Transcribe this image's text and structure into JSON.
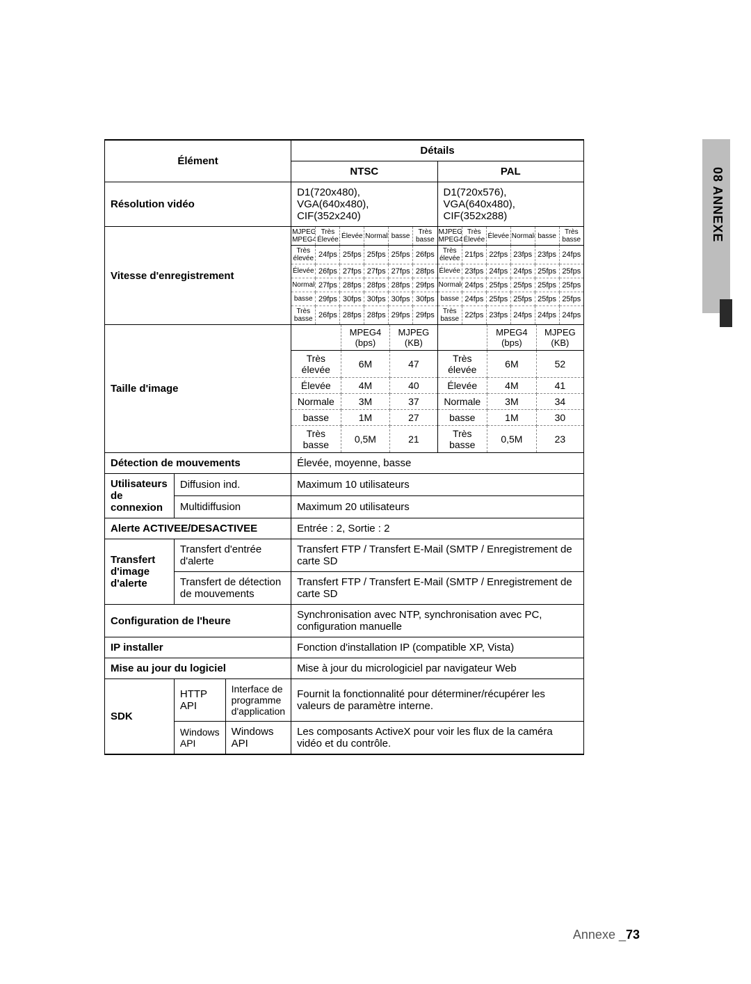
{
  "side_label": "08  ANNEXE",
  "headers": {
    "element": "Élément",
    "details": "Détails",
    "ntsc": "NTSC",
    "pal": "PAL"
  },
  "rows": {
    "resolution": {
      "label": "Résolution vidéo",
      "ntsc": "D1(720x480), VGA(640x480), CIF(352x240)",
      "pal": "D1(720x576), VGA(640x480), CIF(352x288)"
    },
    "rec_speed": {
      "label": "Vitesse d'enregistrement",
      "col_headers": [
        "Très Élevée",
        "Élevée",
        "Normale",
        "basse",
        "Très basse"
      ],
      "corner_ntsc": "MJPEG MPEG4",
      "corner_pal": "MJPEG MPEG4",
      "row_headers": [
        "Très élevée",
        "Élevée",
        "Normale",
        "basse",
        "Très basse"
      ],
      "ntsc": [
        [
          "24fps",
          "25fps",
          "25fps",
          "25fps",
          "26fps"
        ],
        [
          "26fps",
          "27fps",
          "27fps",
          "27fps",
          "28fps"
        ],
        [
          "27fps",
          "28fps",
          "28fps",
          "28fps",
          "29fps"
        ],
        [
          "29fps",
          "30fps",
          "30fps",
          "30fps",
          "30fps"
        ],
        [
          "26fps",
          "28fps",
          "28fps",
          "29fps",
          "29fps"
        ]
      ],
      "pal": [
        [
          "21fps",
          "22fps",
          "23fps",
          "23fps",
          "24fps"
        ],
        [
          "23fps",
          "24fps",
          "24fps",
          "25fps",
          "25fps"
        ],
        [
          "24fps",
          "25fps",
          "25fps",
          "25fps",
          "25fps"
        ],
        [
          "24fps",
          "25fps",
          "25fps",
          "25fps",
          "25fps"
        ],
        [
          "22fps",
          "23fps",
          "24fps",
          "24fps",
          "24fps"
        ]
      ]
    },
    "img_size": {
      "label": "Taille d'image",
      "col_headers": [
        "",
        "MPEG4 (bps)",
        "MJPEG (KB)"
      ],
      "row_headers": [
        "Très élevée",
        "Élevée",
        "Normale",
        "basse",
        "Très basse"
      ],
      "ntsc": [
        [
          "6M",
          "47"
        ],
        [
          "4M",
          "40"
        ],
        [
          "3M",
          "37"
        ],
        [
          "1M",
          "27"
        ],
        [
          "0,5M",
          "21"
        ]
      ],
      "pal": [
        [
          "6M",
          "52"
        ],
        [
          "4M",
          "41"
        ],
        [
          "3M",
          "34"
        ],
        [
          "1M",
          "30"
        ],
        [
          "0,5M",
          "23"
        ]
      ]
    },
    "motion": {
      "label": "Détection de mouvements",
      "value": "Élevée, moyenne, basse"
    },
    "users": {
      "label": "Utilisateurs de connexion",
      "r1_label": "Diffusion ind.",
      "r1_value": "Maximum 10 utilisateurs",
      "r2_label": "Multidiffusion",
      "r2_value": "Maximum 20 utilisateurs"
    },
    "alert_onoff": {
      "label": "Alerte ACTIVEE/DESACTIVEE",
      "value": "Entrée : 2, Sortie : 2"
    },
    "alert_img": {
      "label": "Transfert d'image d'alerte",
      "r1_label": "Transfert d'entrée d'alerte",
      "r1_value": "Transfert FTP / Transfert E-Mail (SMTP / Enregistrement de carte SD",
      "r2_label": "Transfert de détection de mouvements",
      "r2_value": "Transfert FTP / Transfert E-Mail (SMTP / Enregistrement de carte SD"
    },
    "time_cfg": {
      "label": "Configuration de l'heure",
      "value": "Synchronisation avec NTP, synchronisation avec PC, configuration manuelle"
    },
    "ip_installer": {
      "label": "IP installer",
      "value": "Fonction d'installation IP (compatible XP, Vista)"
    },
    "sw_update": {
      "label": "Mise au jour du logiciel",
      "value": "Mise à jour du micrologiciel par navigateur Web"
    },
    "sdk": {
      "label": "SDK",
      "r1_c1": "HTTP API",
      "r1_c2": "Interface de programme d'application",
      "r1_value": "Fournit la fonctionnalité pour déterminer/récupérer les valeurs de paramètre interne.",
      "r2_c1": "Windows API",
      "r2_c2": "Windows API",
      "r2_value": "Les composants ActiveX pour voir les flux de la caméra vidéo et du contrôle."
    }
  },
  "footer": {
    "text": "Annexe _",
    "page": "73"
  }
}
